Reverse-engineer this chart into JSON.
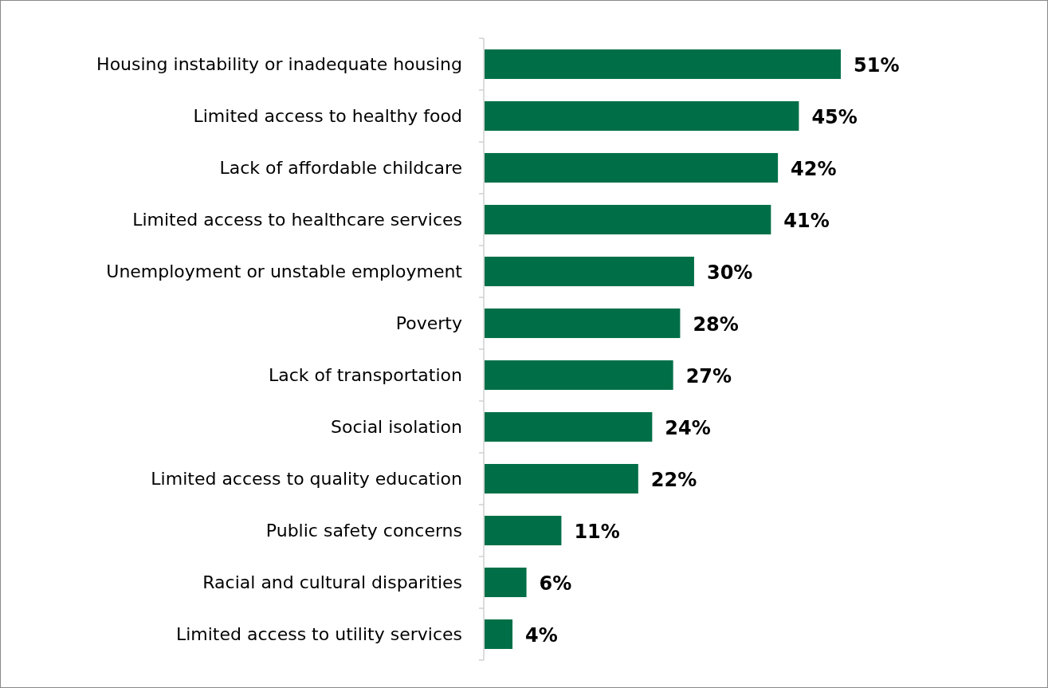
{
  "chart_data": {
    "type": "bar",
    "orientation": "horizontal",
    "categories": [
      "Housing instability or inadequate housing",
      "Limited access to healthy food",
      "Lack of affordable childcare",
      "Limited access to healthcare services",
      "Unemployment or unstable employment",
      "Poverty",
      "Lack of transportation",
      "Social isolation",
      "Limited access to quality education",
      "Public safety concerns",
      "Racial and cultural disparities",
      "Limited access to utility services"
    ],
    "values": [
      51,
      45,
      42,
      41,
      30,
      28,
      27,
      24,
      22,
      11,
      6,
      4
    ],
    "value_labels": [
      "51%",
      "45%",
      "42%",
      "41%",
      "30%",
      "28%",
      "27%",
      "24%",
      "22%",
      "11%",
      "6%",
      "4%"
    ],
    "color": "#006f47"
  }
}
